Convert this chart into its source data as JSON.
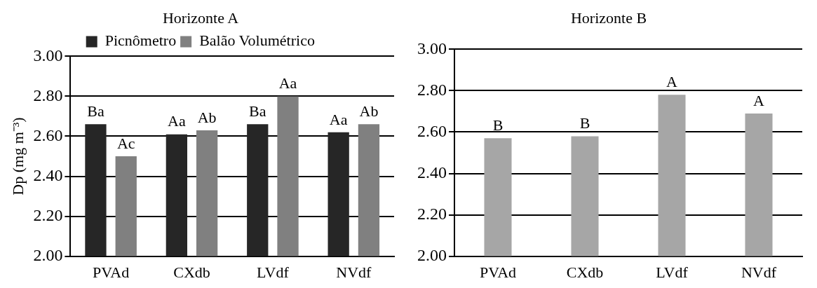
{
  "chart_data": [
    {
      "type": "bar",
      "title": "Horizonte A",
      "ylabel": "Dp (mg m⁻³)",
      "categories": [
        "PVAd",
        "CXdb",
        "LVdf",
        "NVdf"
      ],
      "series": [
        {
          "name": "Picnômetro",
          "color": "#262626",
          "values": [
            2.66,
            2.61,
            2.66,
            2.62
          ],
          "value_labels": [
            "Ba",
            "Aa",
            "Ba",
            "Aa"
          ]
        },
        {
          "name": "Balão Volumétrico",
          "color": "#808080",
          "values": [
            2.5,
            2.63,
            2.8,
            2.66
          ],
          "value_labels": [
            "Ac",
            "Ab",
            "Aa",
            "Ab"
          ]
        }
      ],
      "ylim": [
        2,
        3
      ],
      "yticks": [
        {
          "value": 2,
          "label": "2.00"
        },
        {
          "value": 2.2,
          "label": "2.20"
        },
        {
          "value": 2.4,
          "label": "2.40"
        },
        {
          "value": 2.6,
          "label": "2.60"
        },
        {
          "value": 2.8,
          "label": "2.80"
        },
        {
          "value": 3,
          "label": "3.00"
        }
      ],
      "grid": "y",
      "legend": "top"
    },
    {
      "type": "bar",
      "title": "Horizonte B",
      "categories": [
        "PVAd",
        "CXdb",
        "LVdf",
        "NVdf"
      ],
      "series": [
        {
          "color": "#a6a6a6",
          "values": [
            2.57,
            2.58,
            2.78,
            2.69
          ],
          "value_labels": [
            "B",
            "B",
            "A",
            "A"
          ]
        }
      ],
      "ylim": [
        2,
        3
      ],
      "yticks": [
        {
          "value": 2,
          "label": "2.00"
        },
        {
          "value": 2.2,
          "label": "2.20"
        },
        {
          "value": 2.4,
          "label": "2.40"
        },
        {
          "value": 2.6,
          "label": "2.60"
        },
        {
          "value": 2.8,
          "label": "2.80"
        },
        {
          "value": 3,
          "label": "3.00"
        }
      ],
      "grid": "y"
    }
  ]
}
